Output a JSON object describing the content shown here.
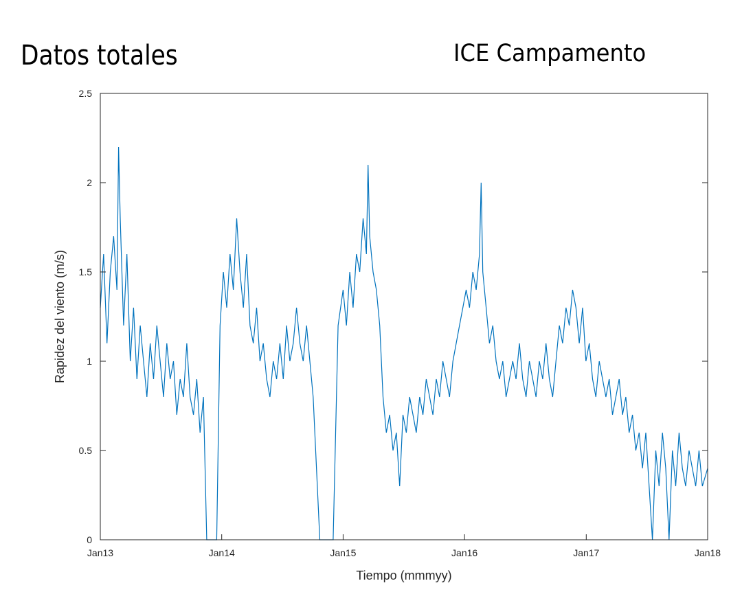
{
  "labels": {
    "left_title": "Datos totales",
    "right_title": "ICE Campamento"
  },
  "chart_data": {
    "type": "line",
    "xlabel": "Tiempo (mmmyy)",
    "ylabel": "Rapidez del viento (m/s)",
    "xlim": [
      "2013-01-01",
      "2018-01-01"
    ],
    "ylim": [
      0,
      2.5
    ],
    "x_ticks": [
      "Jan13",
      "Jan14",
      "Jan15",
      "Jan16",
      "Jan17",
      "Jan18"
    ],
    "y_ticks": [
      "0",
      "0.5",
      "1",
      "1.5",
      "2",
      "2.5"
    ],
    "y_tick_values": [
      0,
      0.5,
      1,
      1.5,
      2,
      2.5
    ],
    "grid": false,
    "legend": "none",
    "series": [
      {
        "color": "#0072BD",
        "x_unit": "days since 2013-01-01",
        "points": [
          [
            0,
            1.3
          ],
          [
            10,
            1.6
          ],
          [
            20,
            1.1
          ],
          [
            30,
            1.5
          ],
          [
            40,
            1.7
          ],
          [
            50,
            1.4
          ],
          [
            55,
            2.2
          ],
          [
            60,
            1.8
          ],
          [
            70,
            1.2
          ],
          [
            80,
            1.6
          ],
          [
            90,
            1.0
          ],
          [
            100,
            1.3
          ],
          [
            110,
            0.9
          ],
          [
            120,
            1.2
          ],
          [
            130,
            1.0
          ],
          [
            140,
            0.8
          ],
          [
            150,
            1.1
          ],
          [
            160,
            0.9
          ],
          [
            170,
            1.2
          ],
          [
            180,
            1.0
          ],
          [
            190,
            0.8
          ],
          [
            200,
            1.1
          ],
          [
            210,
            0.9
          ],
          [
            220,
            1.0
          ],
          [
            230,
            0.7
          ],
          [
            240,
            0.9
          ],
          [
            250,
            0.8
          ],
          [
            260,
            1.1
          ],
          [
            270,
            0.8
          ],
          [
            280,
            0.7
          ],
          [
            290,
            0.9
          ],
          [
            300,
            0.6
          ],
          [
            310,
            0.8
          ],
          [
            320,
            0.0
          ],
          [
            330,
            0.0
          ],
          [
            340,
            0.0
          ],
          [
            350,
            0.0
          ],
          [
            360,
            1.2
          ],
          [
            370,
            1.5
          ],
          [
            380,
            1.3
          ],
          [
            390,
            1.6
          ],
          [
            400,
            1.4
          ],
          [
            410,
            1.8
          ],
          [
            420,
            1.5
          ],
          [
            430,
            1.3
          ],
          [
            440,
            1.6
          ],
          [
            450,
            1.2
          ],
          [
            460,
            1.1
          ],
          [
            470,
            1.3
          ],
          [
            480,
            1.0
          ],
          [
            490,
            1.1
          ],
          [
            500,
            0.9
          ],
          [
            510,
            0.8
          ],
          [
            520,
            1.0
          ],
          [
            530,
            0.9
          ],
          [
            540,
            1.1
          ],
          [
            550,
            0.9
          ],
          [
            560,
            1.2
          ],
          [
            570,
            1.0
          ],
          [
            580,
            1.1
          ],
          [
            590,
            1.3
          ],
          [
            600,
            1.1
          ],
          [
            610,
            1.0
          ],
          [
            620,
            1.2
          ],
          [
            630,
            1.0
          ],
          [
            640,
            0.8
          ],
          [
            660,
            0.0
          ],
          [
            680,
            0.0
          ],
          [
            700,
            0.0
          ],
          [
            715,
            1.2
          ],
          [
            730,
            1.4
          ],
          [
            740,
            1.2
          ],
          [
            750,
            1.5
          ],
          [
            760,
            1.3
          ],
          [
            770,
            1.6
          ],
          [
            780,
            1.5
          ],
          [
            790,
            1.8
          ],
          [
            800,
            1.6
          ],
          [
            805,
            2.1
          ],
          [
            810,
            1.7
          ],
          [
            820,
            1.5
          ],
          [
            830,
            1.4
          ],
          [
            840,
            1.2
          ],
          [
            850,
            0.8
          ],
          [
            860,
            0.6
          ],
          [
            870,
            0.7
          ],
          [
            880,
            0.5
          ],
          [
            890,
            0.6
          ],
          [
            900,
            0.3
          ],
          [
            910,
            0.7
          ],
          [
            920,
            0.6
          ],
          [
            930,
            0.8
          ],
          [
            940,
            0.7
          ],
          [
            950,
            0.6
          ],
          [
            960,
            0.8
          ],
          [
            970,
            0.7
          ],
          [
            980,
            0.9
          ],
          [
            990,
            0.8
          ],
          [
            1000,
            0.7
          ],
          [
            1010,
            0.9
          ],
          [
            1020,
            0.8
          ],
          [
            1030,
            1.0
          ],
          [
            1040,
            0.9
          ],
          [
            1050,
            0.8
          ],
          [
            1060,
            1.0
          ],
          [
            1070,
            1.1
          ],
          [
            1080,
            1.2
          ],
          [
            1090,
            1.3
          ],
          [
            1100,
            1.4
          ],
          [
            1110,
            1.3
          ],
          [
            1120,
            1.5
          ],
          [
            1130,
            1.4
          ],
          [
            1140,
            1.6
          ],
          [
            1145,
            2.0
          ],
          [
            1150,
            1.5
          ],
          [
            1160,
            1.3
          ],
          [
            1170,
            1.1
          ],
          [
            1180,
            1.2
          ],
          [
            1190,
            1.0
          ],
          [
            1200,
            0.9
          ],
          [
            1210,
            1.0
          ],
          [
            1220,
            0.8
          ],
          [
            1230,
            0.9
          ],
          [
            1240,
            1.0
          ],
          [
            1250,
            0.9
          ],
          [
            1260,
            1.1
          ],
          [
            1270,
            0.9
          ],
          [
            1280,
            0.8
          ],
          [
            1290,
            1.0
          ],
          [
            1300,
            0.9
          ],
          [
            1310,
            0.8
          ],
          [
            1320,
            1.0
          ],
          [
            1330,
            0.9
          ],
          [
            1340,
            1.1
          ],
          [
            1350,
            0.9
          ],
          [
            1360,
            0.8
          ],
          [
            1370,
            1.0
          ],
          [
            1380,
            1.2
          ],
          [
            1390,
            1.1
          ],
          [
            1400,
            1.3
          ],
          [
            1410,
            1.2
          ],
          [
            1420,
            1.4
          ],
          [
            1430,
            1.3
          ],
          [
            1440,
            1.1
          ],
          [
            1450,
            1.3
          ],
          [
            1460,
            1.0
          ],
          [
            1470,
            1.1
          ],
          [
            1480,
            0.9
          ],
          [
            1490,
            0.8
          ],
          [
            1500,
            1.0
          ],
          [
            1510,
            0.9
          ],
          [
            1520,
            0.8
          ],
          [
            1530,
            0.9
          ],
          [
            1540,
            0.7
          ],
          [
            1550,
            0.8
          ],
          [
            1560,
            0.9
          ],
          [
            1570,
            0.7
          ],
          [
            1580,
            0.8
          ],
          [
            1590,
            0.6
          ],
          [
            1600,
            0.7
          ],
          [
            1610,
            0.5
          ],
          [
            1620,
            0.6
          ],
          [
            1630,
            0.4
          ],
          [
            1640,
            0.6
          ],
          [
            1650,
            0.3
          ],
          [
            1660,
            0.0
          ],
          [
            1670,
            0.5
          ],
          [
            1680,
            0.3
          ],
          [
            1690,
            0.6
          ],
          [
            1700,
            0.4
          ],
          [
            1710,
            0.0
          ],
          [
            1720,
            0.5
          ],
          [
            1730,
            0.3
          ],
          [
            1740,
            0.6
          ],
          [
            1750,
            0.4
          ],
          [
            1760,
            0.3
          ],
          [
            1770,
            0.5
          ],
          [
            1780,
            0.4
          ],
          [
            1790,
            0.3
          ],
          [
            1800,
            0.5
          ],
          [
            1810,
            0.3
          ],
          [
            1826,
            0.4
          ]
        ]
      }
    ]
  }
}
